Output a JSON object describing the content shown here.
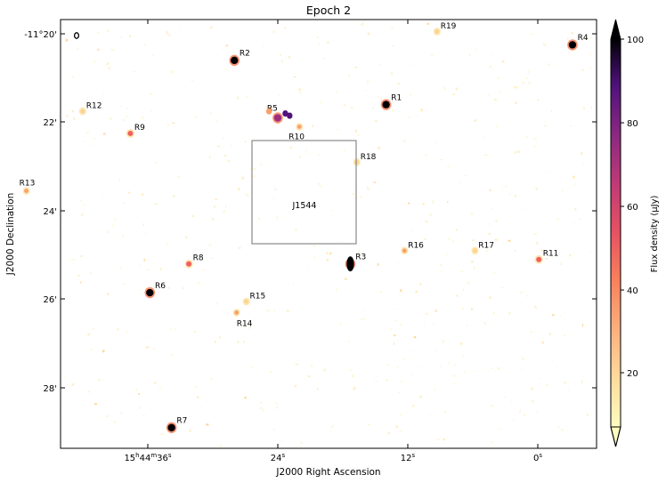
{
  "title": "Epoch 2",
  "x_axis": {
    "label": "J2000 Right Ascension",
    "ticks": [
      {
        "hm": "15",
        "h_unit": "h",
        "mm": "44",
        "m_unit": "m",
        "ss": "36",
        "s_unit": "s"
      },
      {
        "ss": "24",
        "s_unit": "s"
      },
      {
        "ss": "12",
        "s_unit": "s"
      },
      {
        "ss": "0",
        "s_unit": "s"
      }
    ]
  },
  "y_axis": {
    "label": "J2000 Declination",
    "ticks": [
      "-11°20'",
      "22'",
      "24'",
      "26'",
      "28'"
    ]
  },
  "colorbar": {
    "label": "Flux density (μJy)",
    "ticks": [
      "100",
      "80",
      "60",
      "40",
      "20"
    ],
    "range": [
      5,
      100
    ],
    "colormap": "magma_r"
  },
  "field_box_label": "J1544",
  "sources": [
    {
      "name": "R1",
      "ra_s": 14.0,
      "dec_arcmin": 21.6,
      "flux": 100
    },
    {
      "name": "R2",
      "ra_s": 28.0,
      "dec_arcmin": 20.6,
      "flux": 100
    },
    {
      "name": "R3",
      "ra_s": 17.3,
      "dec_arcmin": 25.2,
      "flux": 100
    },
    {
      "name": "R4",
      "ra_s": -3.2,
      "dec_arcmin": 20.25,
      "flux": 100
    },
    {
      "name": "R5",
      "ra_s": 24.0,
      "dec_arcmin": 21.9,
      "flux": 80
    },
    {
      "name": "R6",
      "ra_s": 35.8,
      "dec_arcmin": 25.85,
      "flux": 100
    },
    {
      "name": "R7",
      "ra_s": 33.8,
      "dec_arcmin": 28.9,
      "flux": 100
    },
    {
      "name": "R8",
      "ra_s": 32.2,
      "dec_arcmin": 25.2,
      "flux": 45
    },
    {
      "name": "R9",
      "ra_s": 37.6,
      "dec_arcmin": 22.25,
      "flux": 40
    },
    {
      "name": "R10",
      "ra_s": 22.0,
      "dec_arcmin": 22.1,
      "flux": 30
    },
    {
      "name": "R11",
      "ra_s": -0.1,
      "dec_arcmin": 25.1,
      "flux": 40
    },
    {
      "name": "R12",
      "ra_s": 42.0,
      "dec_arcmin": 21.75,
      "flux": 25
    },
    {
      "name": "R13",
      "ra_s": 47.2,
      "dec_arcmin": 23.55,
      "flux": 35
    },
    {
      "name": "R14",
      "ra_s": 27.8,
      "dec_arcmin": 26.3,
      "flux": 35
    },
    {
      "name": "R15",
      "ra_s": 26.9,
      "dec_arcmin": 26.05,
      "flux": 22
    },
    {
      "name": "R16",
      "ra_s": 12.3,
      "dec_arcmin": 24.9,
      "flux": 35
    },
    {
      "name": "R17",
      "ra_s": 5.8,
      "dec_arcmin": 24.9,
      "flux": 25
    },
    {
      "name": "R18",
      "ra_s": 16.7,
      "dec_arcmin": 22.9,
      "flux": 22
    },
    {
      "name": "R19",
      "ra_s": 9.3,
      "dec_arcmin": 19.95,
      "flux": 20
    }
  ],
  "colors": {
    "box": "#888888",
    "beam": "#000000"
  }
}
